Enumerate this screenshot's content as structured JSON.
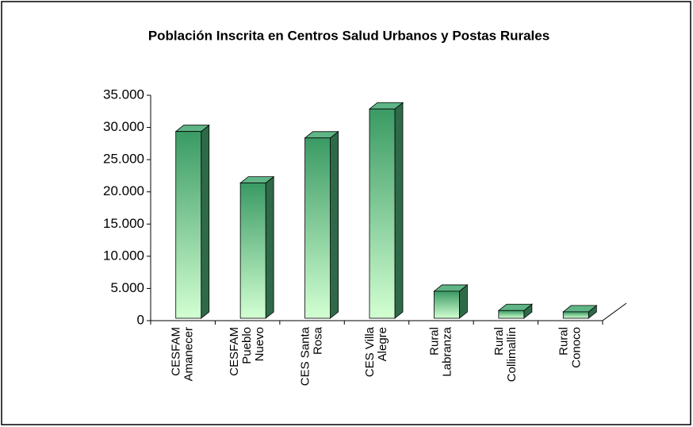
{
  "chart_data": {
    "type": "bar3d",
    "title": "Población Inscrita en Centros Salud Urbanos y Postas Rurales",
    "categories": [
      "CESFAM\nAmanecer",
      "CESFAM\nPueblo\nNuevo",
      "CES Santa\nRosa",
      "CES Villa\nAlegre",
      "Rural\nLabranza",
      "Rural\nCollimallín",
      "Rural\nConoco"
    ],
    "values": [
      29000,
      21000,
      28000,
      32500,
      4200,
      1200,
      1000
    ],
    "color": "#3a9a64",
    "ylim": [
      0,
      35000
    ],
    "yticks": [
      0,
      {
        "value": 5000,
        "label": "5.000"
      },
      {
        "value": 10000,
        "label": "10.000"
      },
      {
        "value": 15000,
        "label": "15.000"
      },
      {
        "value": 20000,
        "label": "20.000"
      },
      {
        "value": 25000,
        "label": "25.000"
      },
      {
        "value": 30000,
        "label": "30.000"
      },
      {
        "value": 35000,
        "label": "35.000"
      }
    ],
    "grid": false
  }
}
